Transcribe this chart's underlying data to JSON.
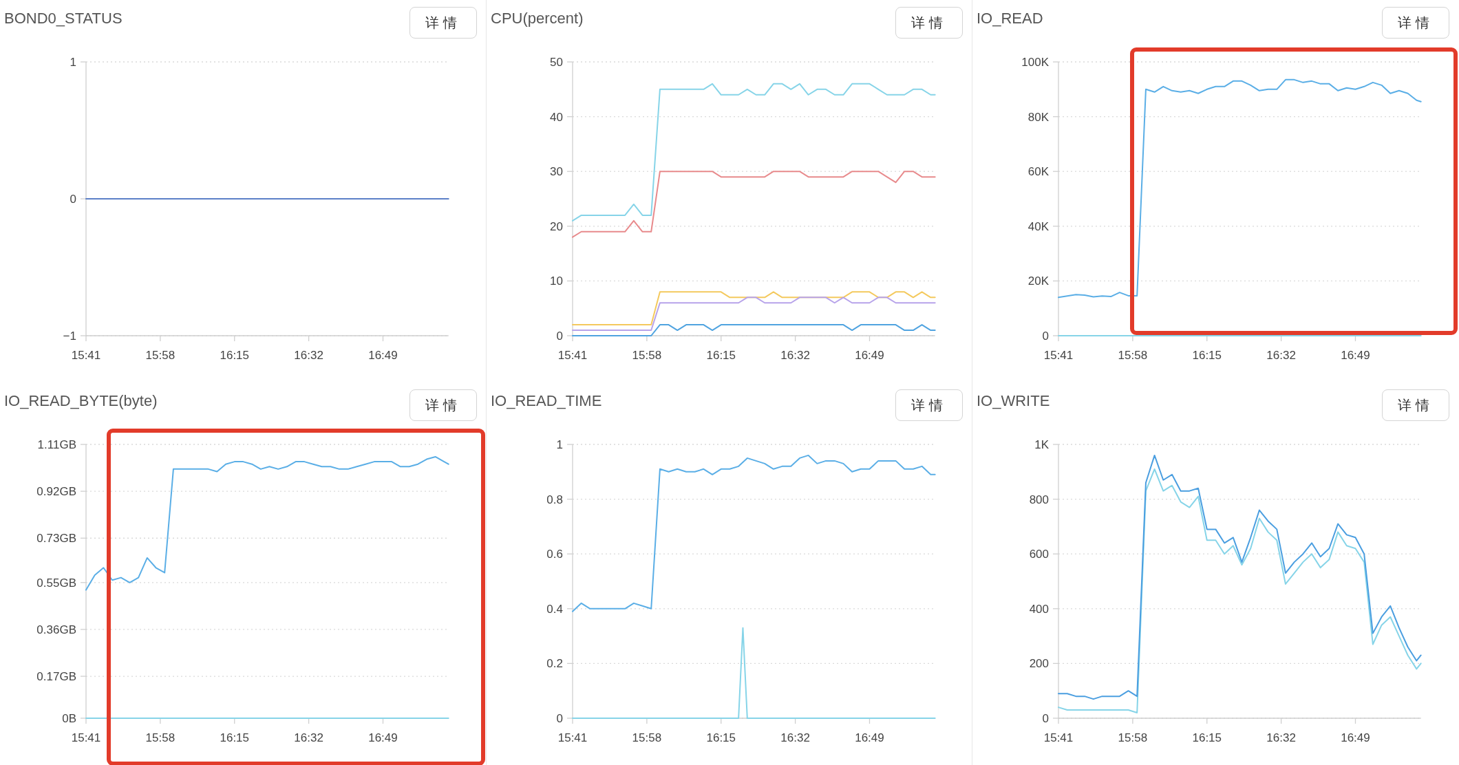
{
  "chart_data": [
    {
      "type": "line",
      "title": "BOND0_STATUS",
      "annotations": [
        "详情"
      ],
      "grid": "y",
      "x": [
        15.6833,
        15.7167,
        15.75,
        15.7833,
        15.8167,
        15.85,
        15.8833,
        15.9167,
        15.95,
        15.9833,
        16.0167,
        16.05,
        16.0833,
        16.1167,
        16.15,
        16.1833,
        16.2167,
        16.25,
        16.2833,
        16.3167,
        16.35,
        16.3833,
        16.4167,
        16.45,
        16.4833,
        16.5167,
        16.55,
        16.5833,
        16.6167,
        16.65,
        16.6833,
        16.7167,
        16.75,
        16.7833,
        16.8167,
        16.85,
        16.8833,
        16.9167,
        16.95,
        16.9833,
        17.0167,
        17.05,
        17.0667
      ],
      "xlim": [
        15.6833,
        17.0667
      ],
      "xticks": [
        {
          "value": 15.6833,
          "label": "15:41"
        },
        {
          "value": 15.9667,
          "label": "15:58"
        },
        {
          "value": 16.25,
          "label": "16:15"
        },
        {
          "value": 16.5333,
          "label": "16:32"
        },
        {
          "value": 16.8167,
          "label": "16:49"
        }
      ],
      "ylim": [
        -1,
        1
      ],
      "yticks": [
        {
          "value": -1,
          "label": "−1"
        },
        0,
        1
      ],
      "series": [
        {
          "color": "#5b7fc7",
          "values": [
            0,
            0,
            0,
            0,
            0,
            0,
            0,
            0,
            0,
            0,
            0,
            0,
            0,
            0,
            0,
            0,
            0,
            0,
            0,
            0,
            0,
            0,
            0,
            0,
            0,
            0,
            0,
            0,
            0,
            0,
            0,
            0,
            0,
            0,
            0,
            0,
            0,
            0,
            0,
            0,
            0,
            0,
            0
          ]
        }
      ]
    },
    {
      "type": "line",
      "title": "CPU(percent)",
      "annotations": [
        "详情"
      ],
      "grid": "y",
      "x": [
        15.6833,
        15.7167,
        15.75,
        15.7833,
        15.8167,
        15.85,
        15.8833,
        15.9167,
        15.95,
        15.9833,
        16.0167,
        16.05,
        16.0833,
        16.1167,
        16.15,
        16.1833,
        16.2167,
        16.25,
        16.2833,
        16.3167,
        16.35,
        16.3833,
        16.4167,
        16.45,
        16.4833,
        16.5167,
        16.55,
        16.5833,
        16.6167,
        16.65,
        16.6833,
        16.7167,
        16.75,
        16.7833,
        16.8167,
        16.85,
        16.8833,
        16.9167,
        16.95,
        16.9833,
        17.0167,
        17.05,
        17.0667
      ],
      "xlim": [
        15.6833,
        17.0667
      ],
      "xticks": [
        {
          "value": 15.6833,
          "label": "15:41"
        },
        {
          "value": 15.9667,
          "label": "15:58"
        },
        {
          "value": 16.25,
          "label": "16:15"
        },
        {
          "value": 16.5333,
          "label": "16:32"
        },
        {
          "value": 16.8167,
          "label": "16:49"
        }
      ],
      "ylim": [
        0,
        50
      ],
      "yticks": [
        0,
        10,
        20,
        30,
        40,
        50
      ],
      "series": [
        {
          "color": "#86d4e8",
          "values": [
            21,
            22,
            22,
            22,
            22,
            22,
            22,
            24,
            22,
            22,
            45,
            45,
            45,
            45,
            45,
            45,
            46,
            44,
            44,
            44,
            45,
            44,
            44,
            46,
            46,
            45,
            46,
            44,
            45,
            45,
            44,
            44,
            46,
            46,
            46,
            45,
            44,
            44,
            44,
            45,
            45,
            44,
            44
          ]
        },
        {
          "color": "#e88a8c",
          "values": [
            18,
            19,
            19,
            19,
            19,
            19,
            19,
            21,
            19,
            19,
            30,
            30,
            30,
            30,
            30,
            30,
            30,
            29,
            29,
            29,
            29,
            29,
            29,
            30,
            30,
            30,
            30,
            29,
            29,
            29,
            29,
            29,
            30,
            30,
            30,
            30,
            29,
            28,
            30,
            30,
            29,
            29,
            29
          ]
        },
        {
          "color": "#f4c95d",
          "values": [
            2,
            2,
            2,
            2,
            2,
            2,
            2,
            2,
            2,
            2,
            8,
            8,
            8,
            8,
            8,
            8,
            8,
            8,
            7,
            7,
            7,
            7,
            7,
            8,
            7,
            7,
            7,
            7,
            7,
            7,
            7,
            7,
            8,
            8,
            8,
            7,
            7,
            8,
            8,
            7,
            8,
            7,
            7
          ]
        },
        {
          "color": "#b7a3ea",
          "values": [
            1,
            1,
            1,
            1,
            1,
            1,
            1,
            1,
            1,
            1,
            6,
            6,
            6,
            6,
            6,
            6,
            6,
            6,
            6,
            6,
            7,
            7,
            6,
            6,
            6,
            6,
            7,
            7,
            7,
            7,
            6,
            7,
            6,
            6,
            6,
            7,
            7,
            6,
            6,
            6,
            6,
            6,
            6
          ]
        },
        {
          "color": "#4fa3e0",
          "values": [
            0,
            0,
            0,
            0,
            0,
            0,
            0,
            0,
            0,
            0,
            2,
            2,
            1,
            2,
            2,
            2,
            1,
            2,
            2,
            2,
            2,
            2,
            2,
            2,
            2,
            2,
            2,
            2,
            2,
            2,
            2,
            2,
            1,
            2,
            2,
            2,
            2,
            2,
            1,
            1,
            2,
            1,
            1
          ]
        }
      ]
    },
    {
      "type": "line",
      "title": "IO_READ",
      "annotations": [
        "详情"
      ],
      "grid": "y",
      "x": [
        15.6833,
        15.7167,
        15.75,
        15.7833,
        15.8167,
        15.85,
        15.8833,
        15.9167,
        15.95,
        15.9833,
        16.0167,
        16.05,
        16.0833,
        16.1167,
        16.15,
        16.1833,
        16.2167,
        16.25,
        16.2833,
        16.3167,
        16.35,
        16.3833,
        16.4167,
        16.45,
        16.4833,
        16.5167,
        16.55,
        16.5833,
        16.6167,
        16.65,
        16.6833,
        16.7167,
        16.75,
        16.7833,
        16.8167,
        16.85,
        16.8833,
        16.9167,
        16.95,
        16.9833,
        17.0167,
        17.05,
        17.0667
      ],
      "xlim": [
        15.6833,
        17.0667
      ],
      "xticks": [
        {
          "value": 15.6833,
          "label": "15:41"
        },
        {
          "value": 15.9667,
          "label": "15:58"
        },
        {
          "value": 16.25,
          "label": "16:15"
        },
        {
          "value": 16.5333,
          "label": "16:32"
        },
        {
          "value": 16.8167,
          "label": "16:49"
        }
      ],
      "ylim": [
        0,
        100000
      ],
      "yticks": [
        0,
        {
          "value": 20000,
          "label": "20K"
        },
        {
          "value": 40000,
          "label": "40K"
        },
        {
          "value": 60000,
          "label": "60K"
        },
        {
          "value": 80000,
          "label": "80K"
        },
        {
          "value": 100000,
          "label": "100K"
        }
      ],
      "series": [
        {
          "color": "#86d4e8",
          "values": [
            0,
            0,
            0,
            0,
            0,
            0,
            0,
            0,
            0,
            0,
            0,
            0,
            0,
            0,
            0,
            0,
            0,
            0,
            0,
            0,
            0,
            0,
            0,
            0,
            0,
            0,
            0,
            0,
            0,
            0,
            0,
            0,
            0,
            0,
            0,
            0,
            0,
            0,
            0,
            0,
            0,
            0,
            0
          ]
        },
        {
          "color": "#5aaee6",
          "values": [
            14000,
            14500,
            15000,
            14800,
            14200,
            14500,
            14300,
            15800,
            14600,
            14600,
            90000,
            89000,
            91000,
            89500,
            89000,
            89500,
            88500,
            90000,
            91000,
            91000,
            93000,
            93000,
            91500,
            89500,
            90000,
            90000,
            93500,
            93500,
            92500,
            93000,
            92000,
            92000,
            89500,
            90500,
            90000,
            91000,
            92500,
            91500,
            88500,
            89500,
            88500,
            86000,
            85500
          ]
        }
      ]
    },
    {
      "type": "line",
      "title": "IO_READ_BYTE(byte)",
      "annotations": [
        "详情"
      ],
      "grid": "y",
      "x": [
        15.6833,
        15.7167,
        15.75,
        15.7833,
        15.8167,
        15.85,
        15.8833,
        15.9167,
        15.95,
        15.9833,
        16.0167,
        16.05,
        16.0833,
        16.1167,
        16.15,
        16.1833,
        16.2167,
        16.25,
        16.2833,
        16.3167,
        16.35,
        16.3833,
        16.4167,
        16.45,
        16.4833,
        16.5167,
        16.55,
        16.5833,
        16.6167,
        16.65,
        16.6833,
        16.7167,
        16.75,
        16.7833,
        16.8167,
        16.85,
        16.8833,
        16.9167,
        16.95,
        16.9833,
        17.0167,
        17.05,
        17.0667
      ],
      "xlim": [
        15.6833,
        17.0667
      ],
      "xticks": [
        {
          "value": 15.6833,
          "label": "15:41"
        },
        {
          "value": 15.9667,
          "label": "15:58"
        },
        {
          "value": 16.25,
          "label": "16:15"
        },
        {
          "value": 16.5333,
          "label": "16:32"
        },
        {
          "value": 16.8167,
          "label": "16:49"
        }
      ],
      "ylim": [
        0,
        1.11
      ],
      "yticks": [
        {
          "value": 0,
          "label": "0B"
        },
        {
          "value": 0.17,
          "label": "0.17GB"
        },
        {
          "value": 0.36,
          "label": "0.36GB"
        },
        {
          "value": 0.55,
          "label": "0.55GB"
        },
        {
          "value": 0.73,
          "label": "0.73GB"
        },
        {
          "value": 0.92,
          "label": "0.92GB"
        },
        {
          "value": 1.11,
          "label": "1.11GB"
        }
      ],
      "series": [
        {
          "color": "#86d4e8",
          "values": [
            0,
            0,
            0,
            0,
            0,
            0,
            0,
            0,
            0,
            0,
            0,
            0,
            0,
            0,
            0,
            0,
            0,
            0,
            0,
            0,
            0,
            0,
            0,
            0,
            0,
            0,
            0,
            0,
            0,
            0,
            0,
            0,
            0,
            0,
            0,
            0,
            0,
            0,
            0,
            0,
            0,
            0,
            0
          ]
        },
        {
          "color": "#5aaee6",
          "values": [
            0.52,
            0.58,
            0.61,
            0.56,
            0.57,
            0.55,
            0.57,
            0.65,
            0.61,
            0.59,
            1.01,
            1.01,
            1.01,
            1.01,
            1.01,
            1.0,
            1.03,
            1.04,
            1.04,
            1.03,
            1.01,
            1.02,
            1.01,
            1.02,
            1.04,
            1.04,
            1.03,
            1.02,
            1.02,
            1.01,
            1.01,
            1.02,
            1.03,
            1.04,
            1.04,
            1.04,
            1.02,
            1.02,
            1.03,
            1.05,
            1.06,
            1.04,
            1.03
          ]
        }
      ]
    },
    {
      "type": "line",
      "title": "IO_READ_TIME",
      "annotations": [
        "详情"
      ],
      "grid": "y",
      "x": [
        15.6833,
        15.7167,
        15.75,
        15.7833,
        15.8167,
        15.85,
        15.8833,
        15.9167,
        15.95,
        15.9833,
        16.0167,
        16.05,
        16.0833,
        16.1167,
        16.15,
        16.1833,
        16.2167,
        16.25,
        16.2833,
        16.3167,
        16.35,
        16.3833,
        16.4167,
        16.45,
        16.4833,
        16.5167,
        16.55,
        16.5833,
        16.6167,
        16.65,
        16.6833,
        16.7167,
        16.75,
        16.7833,
        16.8167,
        16.85,
        16.8833,
        16.9167,
        16.95,
        16.9833,
        17.0167,
        17.05,
        17.0667
      ],
      "xlim": [
        15.6833,
        17.0667
      ],
      "xticks": [
        {
          "value": 15.6833,
          "label": "15:41"
        },
        {
          "value": 15.9667,
          "label": "15:58"
        },
        {
          "value": 16.25,
          "label": "16:15"
        },
        {
          "value": 16.5333,
          "label": "16:32"
        },
        {
          "value": 16.8167,
          "label": "16:49"
        }
      ],
      "ylim": [
        0,
        1
      ],
      "yticks": [
        0,
        0.2,
        0.4,
        0.6,
        0.8,
        1
      ],
      "series": [
        {
          "color": "#86d4e8",
          "x": [
            15.6833,
            16.3167,
            16.3333,
            16.35,
            17.0667
          ],
          "values": [
            0,
            0,
            0.33,
            0,
            0
          ]
        },
        {
          "color": "#5aaee6",
          "values": [
            0.39,
            0.42,
            0.4,
            0.4,
            0.4,
            0.4,
            0.4,
            0.42,
            0.41,
            0.4,
            0.91,
            0.9,
            0.91,
            0.9,
            0.9,
            0.91,
            0.89,
            0.91,
            0.91,
            0.92,
            0.95,
            0.94,
            0.93,
            0.91,
            0.92,
            0.92,
            0.95,
            0.96,
            0.93,
            0.94,
            0.94,
            0.93,
            0.9,
            0.91,
            0.91,
            0.94,
            0.94,
            0.94,
            0.91,
            0.91,
            0.92,
            0.89,
            0.89
          ]
        }
      ]
    },
    {
      "type": "line",
      "title": "IO_WRITE",
      "annotations": [
        "详情"
      ],
      "grid": "y",
      "x": [
        15.6833,
        15.7167,
        15.75,
        15.7833,
        15.8167,
        15.85,
        15.8833,
        15.9167,
        15.95,
        15.9833,
        16.0167,
        16.05,
        16.0833,
        16.1167,
        16.15,
        16.1833,
        16.2167,
        16.25,
        16.2833,
        16.3167,
        16.35,
        16.3833,
        16.4167,
        16.45,
        16.4833,
        16.5167,
        16.55,
        16.5833,
        16.6167,
        16.65,
        16.6833,
        16.7167,
        16.75,
        16.7833,
        16.8167,
        16.85,
        16.8833,
        16.9167,
        16.95,
        16.9833,
        17.0167,
        17.05,
        17.0667
      ],
      "xlim": [
        15.6833,
        17.0667
      ],
      "xticks": [
        {
          "value": 15.6833,
          "label": "15:41"
        },
        {
          "value": 15.9667,
          "label": "15:58"
        },
        {
          "value": 16.25,
          "label": "16:15"
        },
        {
          "value": 16.5333,
          "label": "16:32"
        },
        {
          "value": 16.8167,
          "label": "16:49"
        }
      ],
      "ylim": [
        0,
        1000
      ],
      "yticks": [
        0,
        200,
        400,
        600,
        800,
        {
          "value": 1000,
          "label": "1K"
        }
      ],
      "series": [
        {
          "color": "#86d4e8",
          "values": [
            40,
            30,
            30,
            30,
            30,
            30,
            30,
            30,
            30,
            20,
            830,
            910,
            830,
            850,
            790,
            770,
            810,
            650,
            650,
            600,
            630,
            560,
            620,
            730,
            680,
            650,
            490,
            530,
            570,
            600,
            550,
            580,
            680,
            630,
            620,
            570,
            270,
            340,
            370,
            300,
            230,
            180,
            200
          ]
        },
        {
          "color": "#4a9ee0",
          "values": [
            90,
            90,
            80,
            80,
            70,
            80,
            80,
            80,
            100,
            80,
            860,
            960,
            870,
            890,
            830,
            830,
            840,
            690,
            690,
            640,
            660,
            570,
            660,
            760,
            720,
            690,
            530,
            570,
            600,
            640,
            590,
            620,
            710,
            670,
            660,
            600,
            310,
            370,
            410,
            330,
            260,
            210,
            230
          ]
        }
      ]
    }
  ]
}
